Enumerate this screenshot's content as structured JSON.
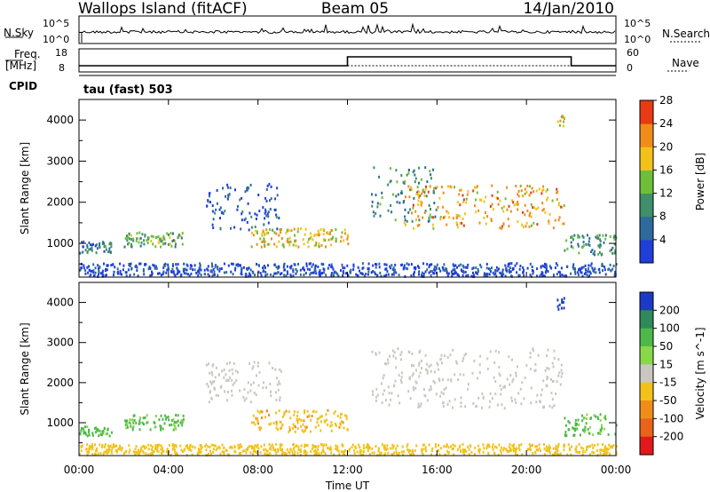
{
  "header": {
    "title": "Wallops Island (fitACF)",
    "beam": "Beam 05",
    "date": "14/Jan/2010"
  },
  "top_panels": {
    "nsky_label": "N.Sky",
    "nsky_top_tick": "10^5",
    "nsky_bottom_tick": "10^0",
    "nsearch_label": "N.Search",
    "nsearch_top_tick": "10^5",
    "nsearch_bottom_tick": "10^0",
    "freq_label": "Freq.",
    "freq_unit": "[MHz]",
    "freq_top_tick": "18",
    "freq_bottom_tick": "8",
    "nave_label": "Nave",
    "nave_top_tick": "60",
    "nave_bottom_tick": "0",
    "cpid_label": "CPID",
    "cpid_value": "tau (fast) 503"
  },
  "chart_data": [
    {
      "type": "heatmap",
      "parameter": "Power",
      "colorbar_label": "Power [dB]",
      "colorbar_ticks": [
        "4",
        "8",
        "12",
        "16",
        "20",
        "24",
        "28"
      ],
      "colors": [
        "#1f3fd8",
        "#2e6a9c",
        "#3f8f6a",
        "#6dbf3a",
        "#f2c21a",
        "#f08c1a",
        "#e83a14"
      ],
      "ylabel": "Slant Range [km]",
      "ylim": [
        180,
        4500
      ],
      "yticks": [
        "1000",
        "2000",
        "3000",
        "4000"
      ],
      "xlim": [
        "00:00",
        "24:00"
      ],
      "echo_regions": [
        {
          "t_start": "00:00",
          "t_end": "01:30",
          "r_min": 750,
          "r_max": 1050,
          "power_db": 10
        },
        {
          "t_start": "02:00",
          "t_end": "04:40",
          "r_min": 900,
          "r_max": 1250,
          "power_db": 14
        },
        {
          "t_start": "05:40",
          "t_end": "09:00",
          "r_min": 1300,
          "r_max": 2450,
          "power_db": 6
        },
        {
          "t_start": "07:40",
          "t_end": "12:00",
          "r_min": 900,
          "r_max": 1350,
          "power_db": 20
        },
        {
          "t_start": "13:00",
          "t_end": "16:00",
          "r_min": 1500,
          "r_max": 2850,
          "power_db": 11
        },
        {
          "t_start": "14:30",
          "t_end": "21:40",
          "r_min": 1350,
          "r_max": 2400,
          "power_db": 22
        },
        {
          "t_start": "21:20",
          "t_end": "21:40",
          "r_min": 3800,
          "r_max": 4100,
          "power_db": 20
        },
        {
          "t_start": "21:40",
          "t_end": "24:00",
          "r_min": 700,
          "r_max": 1200,
          "power_db": 12
        },
        {
          "t_start": "00:00",
          "t_end": "24:00",
          "r_min": 180,
          "r_max": 500,
          "power_db": 4
        }
      ]
    },
    {
      "type": "heatmap",
      "parameter": "Velocity",
      "colorbar_label": "Velocity [m s^-1]",
      "colorbar_ticks": [
        "200",
        "100",
        "50",
        "15",
        "-15",
        "-50",
        "-100",
        "-200"
      ],
      "colors": [
        "#1b3ac8",
        "#2e8a5a",
        "#4fb84a",
        "#88d84a",
        "#c8c8c0",
        "#f2c21a",
        "#f08c1a",
        "#e8641a",
        "#e01a1a"
      ],
      "ylabel": "Slant Range [km]",
      "ylim": [
        180,
        4500
      ],
      "yticks": [
        "1000",
        "2000",
        "3000",
        "4000"
      ],
      "xlabel": "Time UT",
      "xticks": [
        "00:00",
        "04:00",
        "08:00",
        "12:00",
        "16:00",
        "20:00",
        "00:00"
      ],
      "echo_regions": [
        {
          "t_start": "00:00",
          "t_end": "01:30",
          "r_min": 650,
          "r_max": 900,
          "velocity": 40
        },
        {
          "t_start": "02:00",
          "t_end": "04:40",
          "r_min": 800,
          "r_max": 1200,
          "velocity": 40
        },
        {
          "t_start": "05:40",
          "t_end": "09:00",
          "r_min": 1500,
          "r_max": 2500,
          "velocity": 0
        },
        {
          "t_start": "07:40",
          "t_end": "12:00",
          "r_min": 750,
          "r_max": 1300,
          "velocity": -40
        },
        {
          "t_start": "13:00",
          "t_end": "21:40",
          "r_min": 1350,
          "r_max": 2850,
          "velocity": 0
        },
        {
          "t_start": "21:20",
          "t_end": "21:40",
          "r_min": 3800,
          "r_max": 4100,
          "velocity": 180
        },
        {
          "t_start": "21:40",
          "t_end": "24:00",
          "r_min": 650,
          "r_max": 1200,
          "velocity": 40
        },
        {
          "t_start": "00:00",
          "t_end": "24:00",
          "r_min": 180,
          "r_max": 450,
          "velocity": -30
        }
      ]
    }
  ]
}
